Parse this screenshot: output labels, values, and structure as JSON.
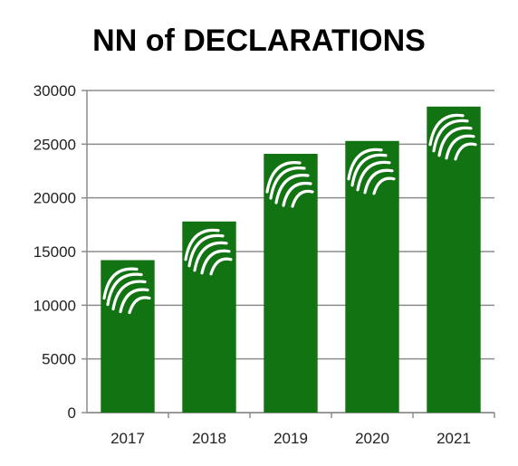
{
  "title": "NN of DECLARATIONS",
  "colors": {
    "bar": "#127312",
    "grid": "#8c8c8c",
    "stripes": "#ffffff"
  },
  "chart_data": {
    "type": "bar",
    "title": "NN of DECLARATIONS",
    "xlabel": "",
    "ylabel": "",
    "categories": [
      "2017",
      "2018",
      "2019",
      "2020",
      "2021"
    ],
    "values": [
      14200,
      17800,
      24100,
      25300,
      28500
    ],
    "ylim": [
      0,
      30000
    ],
    "yticks": [
      "0",
      "5000",
      "10000",
      "15000",
      "20000",
      "25000",
      "30000"
    ],
    "grid": true,
    "legend": "none",
    "bar_decoration": "white-stripes-logo"
  }
}
